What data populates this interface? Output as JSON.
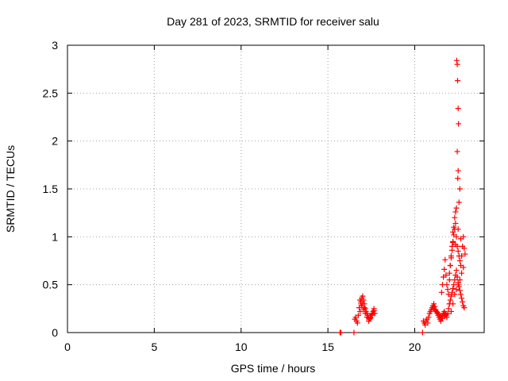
{
  "chart_data": {
    "type": "scatter",
    "title": "Day 281 of 2023, SRMTID for receiver salu",
    "xlabel": "GPS time / hours",
    "ylabel": "SRMTID / TECUs",
    "xlim": [
      0,
      24
    ],
    "ylim": [
      0,
      3
    ],
    "xticks": [
      0,
      5,
      10,
      15,
      20
    ],
    "yticks": [
      0,
      0.5,
      1,
      1.5,
      2,
      2.5,
      3
    ],
    "xtick_labels": [
      "0",
      "5",
      "10",
      "15",
      "20"
    ],
    "ytick_labels": [
      "0",
      "0.5",
      "1",
      "1.5",
      "2",
      "2.5",
      "3"
    ],
    "grid": true,
    "marker": "+",
    "color": "#ff0000",
    "series": [
      {
        "name": "salu",
        "x": [
          15.7,
          15.75,
          16.5,
          16.55,
          16.6,
          16.65,
          16.7,
          16.75,
          16.8,
          16.85,
          16.9,
          16.95,
          17.0,
          17.05,
          17.1,
          17.15,
          17.2,
          17.25,
          17.3,
          17.35,
          17.4,
          17.45,
          17.5,
          17.55,
          17.6,
          17.65,
          17.7,
          16.85,
          16.95,
          17.05,
          17.15,
          17.25,
          17.35,
          17.45,
          17.55,
          17.65,
          16.9,
          17.0,
          17.1,
          20.45,
          20.5,
          20.55,
          20.6,
          20.65,
          20.7,
          20.75,
          20.8,
          20.85,
          20.9,
          20.95,
          21.0,
          21.05,
          21.1,
          21.15,
          21.2,
          21.25,
          21.3,
          21.35,
          21.4,
          21.45,
          21.5,
          21.55,
          21.6,
          21.65,
          21.7,
          21.75,
          21.8,
          21.85,
          21.9,
          21.95,
          22.0,
          21.1,
          21.2,
          21.3,
          21.4,
          21.5,
          21.6,
          21.7,
          21.8,
          21.55,
          21.6,
          21.65,
          21.7,
          21.75,
          21.8,
          21.85,
          21.9,
          21.95,
          22.0,
          22.05,
          22.1,
          22.15,
          22.2,
          22.25,
          22.3,
          22.35,
          22.4,
          22.0,
          22.05,
          22.1,
          22.15,
          22.2,
          22.25,
          22.3,
          22.35,
          22.4,
          22.45,
          22.5,
          22.55,
          22.6,
          22.65,
          22.7,
          22.75,
          22.8,
          22.85,
          22.9,
          22.0,
          22.05,
          22.1,
          22.15,
          22.2,
          22.25,
          22.3,
          22.35,
          22.4,
          22.45,
          22.5,
          22.55,
          22.6,
          22.65,
          22.7,
          22.75,
          22.8,
          22.85,
          22.1,
          22.2,
          22.3,
          22.4,
          22.5,
          22.6,
          22.7,
          22.8,
          22.2,
          22.35,
          22.5,
          22.65,
          22.42,
          22.45,
          22.47,
          22.5,
          22.52,
          22.45,
          22.48,
          22.5,
          22.55,
          22.6
        ],
        "y": [
          0.0,
          0.0,
          0.0,
          0.14,
          0.16,
          0.12,
          0.1,
          0.18,
          0.26,
          0.34,
          0.3,
          0.36,
          0.38,
          0.34,
          0.3,
          0.25,
          0.22,
          0.2,
          0.18,
          0.15,
          0.14,
          0.16,
          0.18,
          0.2,
          0.22,
          0.25,
          0.2,
          0.22,
          0.28,
          0.24,
          0.2,
          0.16,
          0.12,
          0.15,
          0.19,
          0.23,
          0.32,
          0.3,
          0.26,
          0.0,
          0.12,
          0.1,
          0.08,
          0.12,
          0.14,
          0.1,
          0.16,
          0.2,
          0.22,
          0.24,
          0.26,
          0.28,
          0.3,
          0.27,
          0.24,
          0.22,
          0.2,
          0.18,
          0.16,
          0.14,
          0.12,
          0.15,
          0.18,
          0.2,
          0.22,
          0.2,
          0.18,
          0.16,
          0.2,
          0.25,
          0.3,
          0.25,
          0.23,
          0.21,
          0.19,
          0.17,
          0.15,
          0.17,
          0.19,
          0.42,
          0.5,
          0.58,
          0.66,
          0.76,
          0.6,
          0.5,
          0.45,
          0.4,
          0.55,
          0.7,
          0.8,
          0.9,
          0.95,
          1.1,
          1.2,
          1.26,
          1.3,
          0.62,
          0.7,
          0.78,
          0.86,
          0.94,
          1.02,
          1.08,
          1.14,
          1.0,
          0.9,
          0.85,
          0.8,
          0.75,
          0.7,
          0.8,
          0.9,
          1.0,
          0.88,
          0.82,
          0.3,
          0.34,
          0.38,
          0.42,
          0.46,
          0.5,
          0.55,
          0.6,
          0.65,
          0.58,
          0.52,
          0.48,
          0.44,
          0.4,
          0.36,
          0.32,
          0.28,
          0.26,
          0.22,
          0.3,
          0.4,
          0.45,
          0.5,
          0.55,
          0.62,
          0.68,
          1.05,
          0.92,
          1.08,
          0.98,
          2.84,
          2.8,
          2.63,
          2.34,
          2.18,
          1.89,
          1.61,
          1.69,
          1.36,
          1.5
        ]
      }
    ]
  }
}
